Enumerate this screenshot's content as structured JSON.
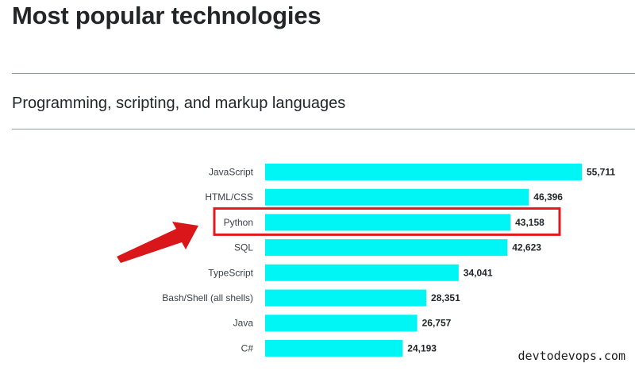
{
  "header": {
    "title": "Most popular technologies",
    "subtitle": "Programming, scripting, and markup languages"
  },
  "watermark": "devtodevops.com",
  "colors": {
    "bar": "#00f5f5",
    "highlight": "#e0191b",
    "arrow": "#d9161a"
  },
  "chart_data": {
    "type": "bar",
    "orientation": "horizontal",
    "categories": [
      "JavaScript",
      "HTML/CSS",
      "Python",
      "SQL",
      "TypeScript",
      "Bash/Shell (all shells)",
      "Java",
      "C#"
    ],
    "values": [
      55711,
      46396,
      43158,
      42623,
      34041,
      28351,
      26757,
      24193
    ],
    "data_labels": [
      "55,711",
      "46,396",
      "43,158",
      "42,623",
      "34,041",
      "28,351",
      "26,757",
      "24,193"
    ],
    "xlim": [
      0,
      55711
    ],
    "grid": false,
    "highlighted_category": "Python"
  }
}
